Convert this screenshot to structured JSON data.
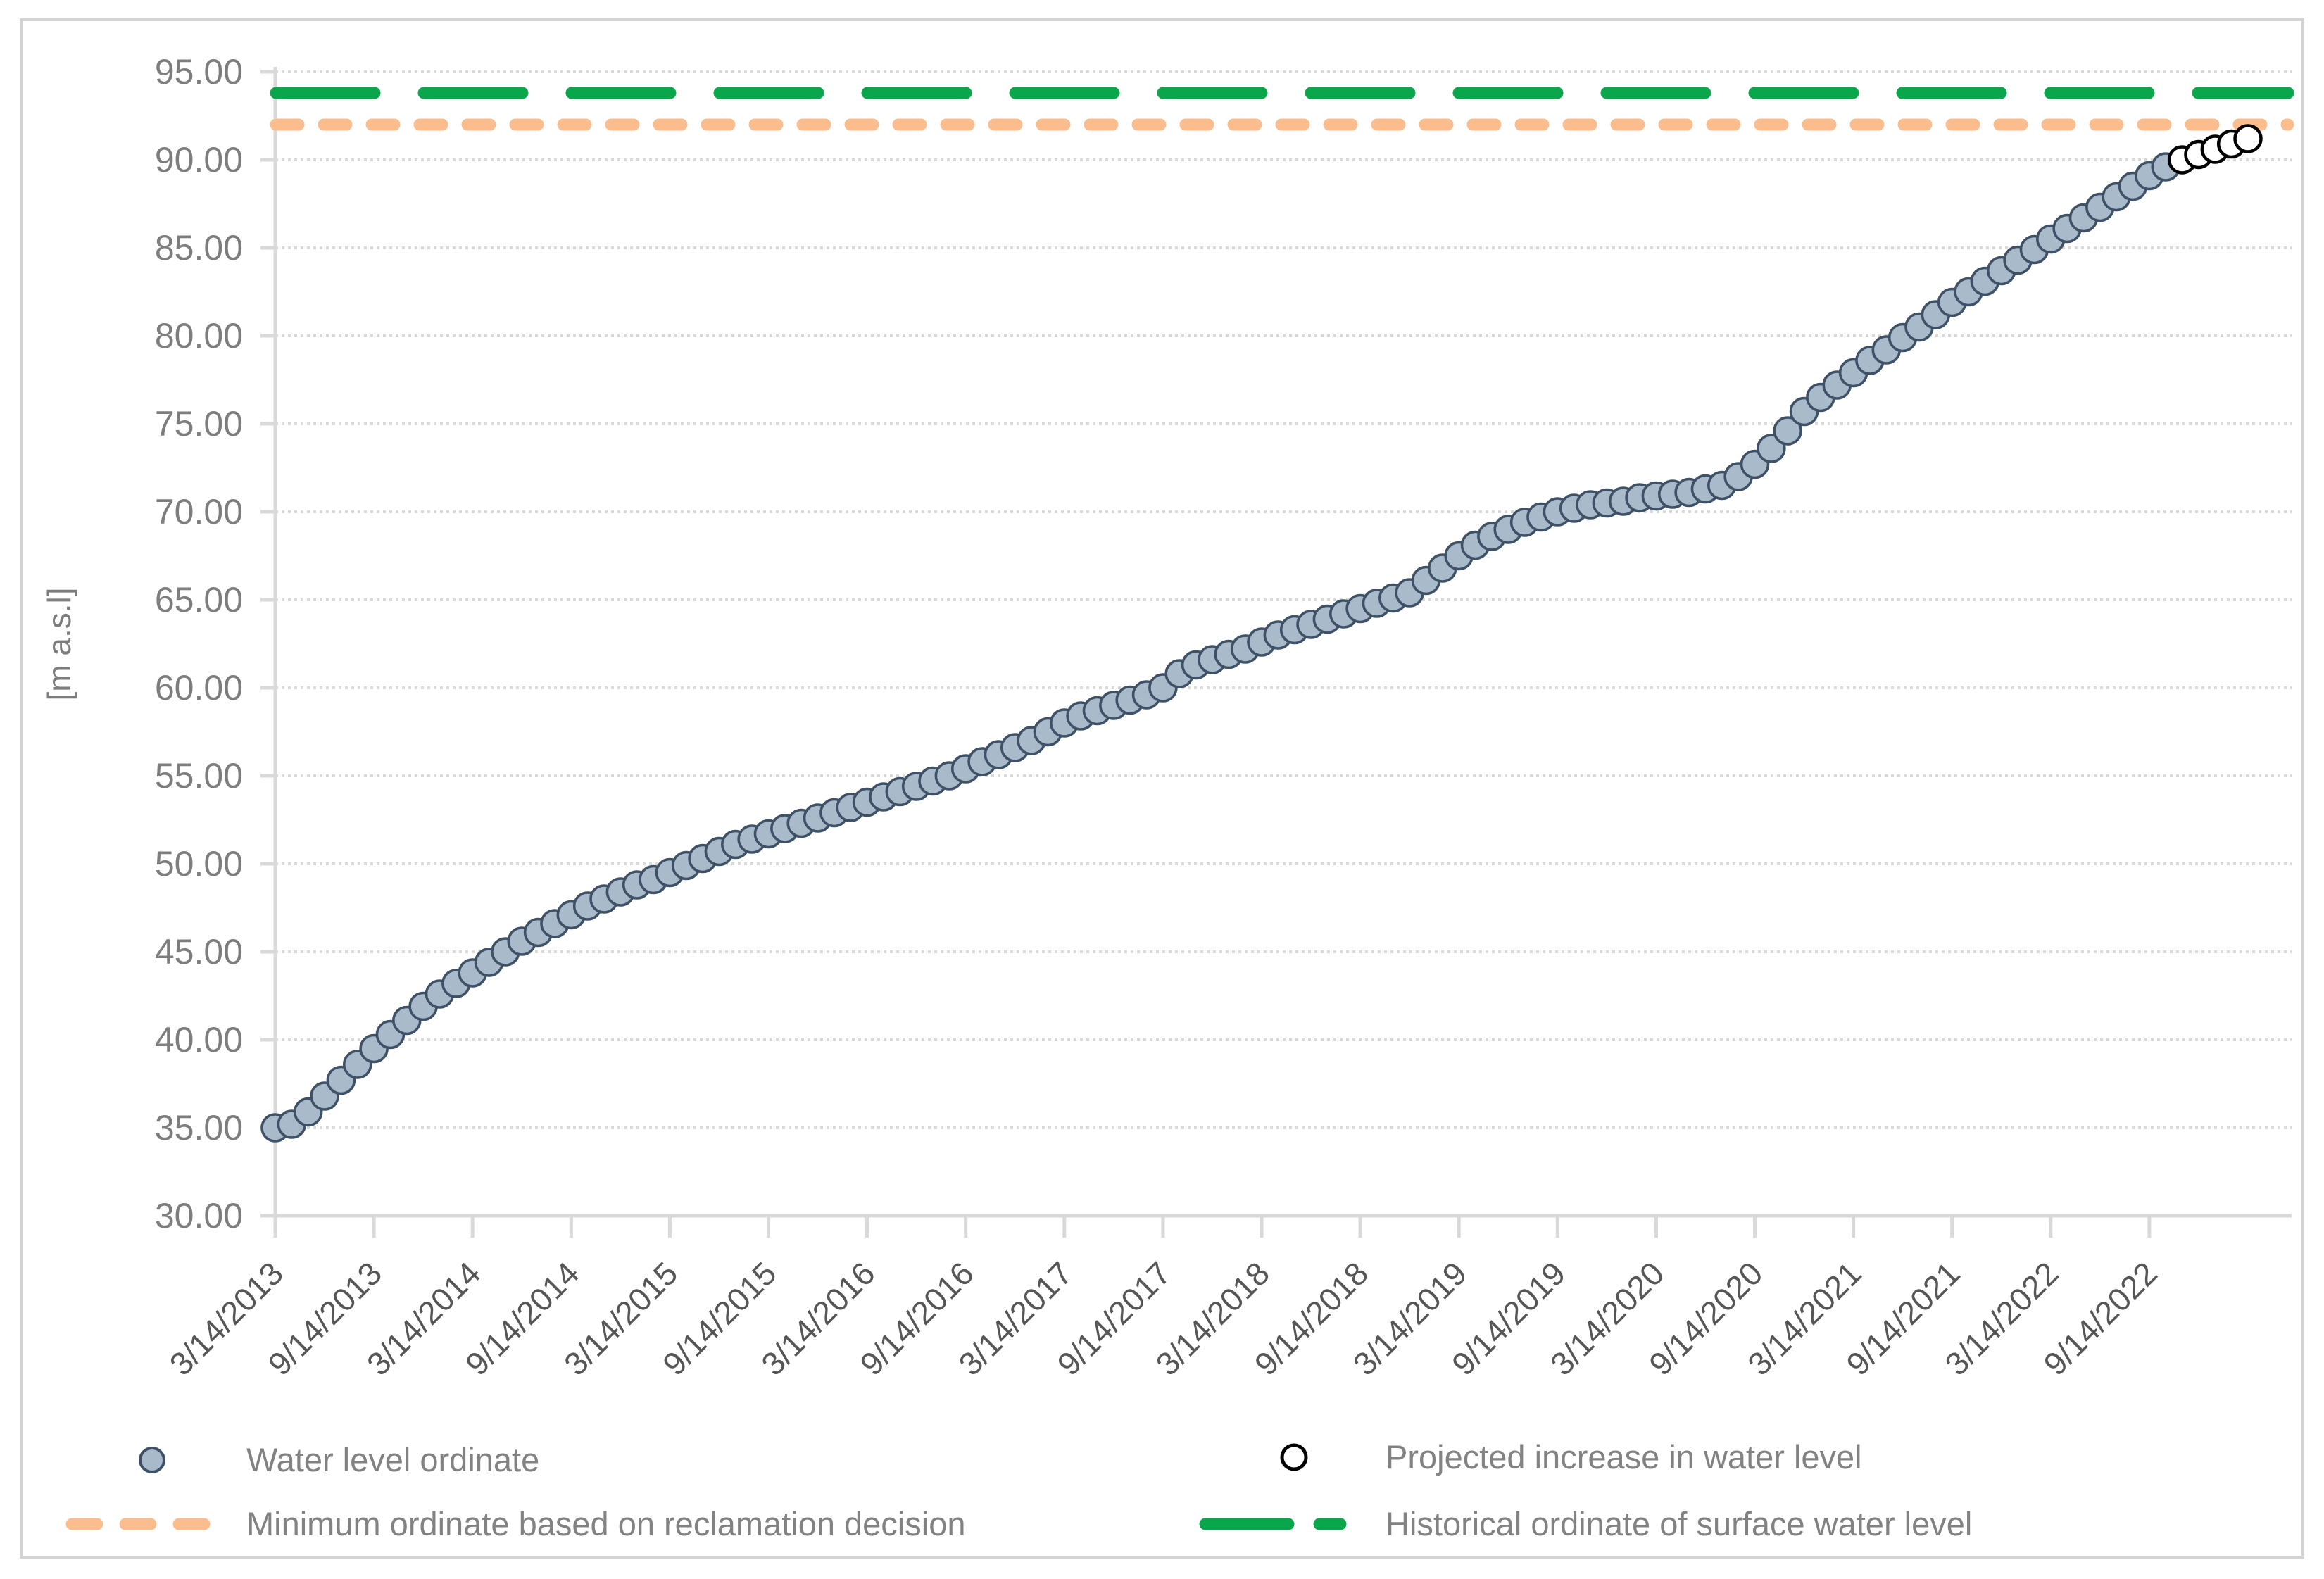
{
  "chart_data": {
    "type": "scatter",
    "title": "",
    "xlabel": "",
    "ylabel": "[m a.s.l]",
    "ylim": [
      30,
      95
    ],
    "ytick_step": 5,
    "ytick_labels": [
      "30.00",
      "35.00",
      "40.00",
      "45.00",
      "50.00",
      "55.00",
      "60.00",
      "65.00",
      "70.00",
      "75.00",
      "80.00",
      "85.00",
      "90.00",
      "95.00"
    ],
    "x_tick_labels": [
      "3/14/2013",
      "9/14/2013",
      "3/14/2014",
      "9/14/2014",
      "3/14/2015",
      "9/14/2015",
      "3/14/2016",
      "9/14/2016",
      "3/14/2017",
      "9/14/2017",
      "3/14/2018",
      "9/14/2018",
      "3/14/2019",
      "9/14/2019",
      "3/14/2020",
      "9/14/2020",
      "3/14/2021",
      "9/14/2021",
      "3/14/2022",
      "9/14/2022"
    ],
    "x_axis": {
      "start_date": "3/14/2013",
      "point_interval": "monthly",
      "tick_every_months": 6
    },
    "grid": "horizontal-dotted",
    "legend_position": "bottom",
    "series": [
      {
        "name": "Water level ordinate",
        "type": "scatter",
        "marker": "filled-circle",
        "fill": "#a9baca",
        "stroke": "#3e5166",
        "start_month_offset": 0,
        "values": [
          35.0,
          35.2,
          35.9,
          36.8,
          37.7,
          38.6,
          39.5,
          40.3,
          41.1,
          41.9,
          42.6,
          43.2,
          43.8,
          44.4,
          45.0,
          45.6,
          46.1,
          46.6,
          47.1,
          47.6,
          48.0,
          48.4,
          48.8,
          49.1,
          49.5,
          49.9,
          50.3,
          50.7,
          51.1,
          51.4,
          51.7,
          52.0,
          52.3,
          52.6,
          52.9,
          53.2,
          53.5,
          53.8,
          54.1,
          54.4,
          54.7,
          55.0,
          55.4,
          55.8,
          56.2,
          56.6,
          57.0,
          57.5,
          58.0,
          58.4,
          58.7,
          59.0,
          59.3,
          59.6,
          60.0,
          60.8,
          61.3,
          61.6,
          61.9,
          62.2,
          62.6,
          63.0,
          63.3,
          63.6,
          63.9,
          64.2,
          64.5,
          64.8,
          65.1,
          65.4,
          66.1,
          66.8,
          67.5,
          68.1,
          68.6,
          69.0,
          69.4,
          69.7,
          70.0,
          70.2,
          70.4,
          70.5,
          70.6,
          70.8,
          70.9,
          71.0,
          71.1,
          71.3,
          71.5,
          72.0,
          72.7,
          73.6,
          74.6,
          75.7,
          76.5,
          77.2,
          77.9,
          78.6,
          79.2,
          79.9,
          80.5,
          81.2,
          81.9,
          82.5,
          83.1,
          83.7,
          84.3,
          84.9,
          85.5,
          86.1,
          86.7,
          87.3,
          87.9,
          88.5,
          89.1,
          89.6
        ]
      },
      {
        "name": "Projected increase in water level",
        "type": "scatter",
        "marker": "open-circle",
        "fill": "#ffffff",
        "stroke": "#000000",
        "start_month_offset": 116,
        "values": [
          90.0,
          90.3,
          90.6,
          90.9,
          91.2
        ]
      },
      {
        "name": "Minimum ordinate based on reclamation decision",
        "type": "hline",
        "value": 92.0,
        "color": "#fbbd8e",
        "dash_style": "short"
      },
      {
        "name": "Historical ordinate of surface water level",
        "type": "hline",
        "value": 93.8,
        "color": "#0aa64b",
        "dash_style": "long"
      }
    ],
    "colors": {
      "gridline": "#d9d9d9",
      "axis_line": "#d9d9d9",
      "x_tick_label": "#565656",
      "y_tick_label": "#7d7d7d",
      "axis_title": "#7d7d7d",
      "legend_text": "#828282",
      "figure_border": "#d3d3d3",
      "background": "#ffffff"
    }
  }
}
